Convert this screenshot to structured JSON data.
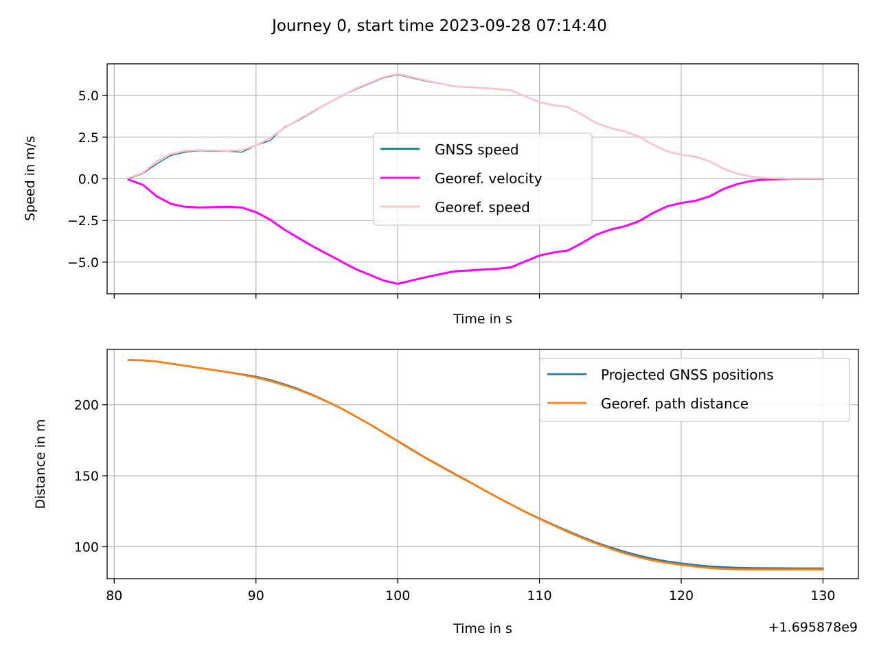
{
  "figure": {
    "title": "Journey 0, start time 2023-09-28 07:14:40",
    "x_offset_label": "+1.695878e9"
  },
  "chart_data": [
    {
      "type": "line",
      "ylabel": "Speed in m/s",
      "xlabel": "Time in s",
      "xlim": [
        79.5,
        132.5
      ],
      "ylim": [
        -6.9,
        6.9
      ],
      "x_ticks": [
        80,
        90,
        100,
        110,
        120,
        130
      ],
      "x_tick_labels_shown": false,
      "y_ticks": [
        -5.0,
        -2.5,
        0.0,
        2.5,
        5.0
      ],
      "y_tick_labels": [
        "−5.0",
        "−2.5",
        "0.0",
        "2.5",
        "5.0"
      ],
      "grid": true,
      "legend": "center",
      "series": [
        {
          "name": "GNSS speed",
          "color": "#008080",
          "x": [
            81,
            82,
            83,
            84,
            85,
            86,
            87,
            88,
            89,
            90,
            91,
            92,
            93,
            94,
            95,
            96,
            97,
            98,
            99,
            100,
            101,
            102,
            103,
            104,
            105,
            106,
            107,
            108,
            109,
            110,
            111,
            112,
            113,
            114,
            115,
            116,
            117,
            118,
            119,
            120,
            121,
            122,
            123,
            124,
            125,
            126,
            127,
            128,
            129,
            130
          ],
          "values": [
            0.0,
            0.3,
            0.9,
            1.4,
            1.6,
            1.68,
            1.65,
            1.65,
            1.6,
            2.0,
            2.3,
            3.1,
            3.5,
            4.0,
            4.5,
            4.95,
            5.35,
            5.7,
            6.05,
            6.25,
            6.05,
            5.85,
            5.7,
            5.55,
            5.5,
            5.45,
            5.4,
            5.3,
            4.95,
            4.6,
            4.4,
            4.3,
            3.85,
            3.35,
            3.05,
            2.85,
            2.55,
            2.05,
            1.65,
            1.45,
            1.35,
            1.05,
            0.6,
            0.3,
            0.12,
            0.04,
            0.05,
            0.0,
            0.0,
            0.0
          ]
        },
        {
          "name": "Georef. velocity",
          "color": "#ff00ff",
          "x": [
            81,
            82,
            83,
            84,
            85,
            86,
            87,
            88,
            89,
            90,
            91,
            92,
            93,
            94,
            95,
            96,
            97,
            98,
            99,
            100,
            101,
            102,
            103,
            104,
            105,
            106,
            107,
            108,
            109,
            110,
            111,
            112,
            113,
            114,
            115,
            116,
            117,
            118,
            119,
            120,
            121,
            122,
            123,
            124,
            125,
            126,
            127,
            128,
            129,
            130
          ],
          "values": [
            -0.05,
            -0.35,
            -1.05,
            -1.5,
            -1.68,
            -1.72,
            -1.7,
            -1.68,
            -1.72,
            -2.0,
            -2.45,
            -3.05,
            -3.55,
            -4.05,
            -4.5,
            -4.95,
            -5.4,
            -5.75,
            -6.1,
            -6.3,
            -6.1,
            -5.9,
            -5.72,
            -5.55,
            -5.5,
            -5.45,
            -5.4,
            -5.3,
            -4.95,
            -4.6,
            -4.42,
            -4.3,
            -3.85,
            -3.35,
            -3.05,
            -2.85,
            -2.55,
            -2.05,
            -1.65,
            -1.45,
            -1.32,
            -1.05,
            -0.6,
            -0.3,
            -0.12,
            -0.04,
            -0.02,
            0.0,
            0.0,
            0.0
          ]
        },
        {
          "name": "Georef. speed",
          "color": "#ffc0cb",
          "x": [
            81,
            82,
            83,
            84,
            85,
            86,
            87,
            88,
            89,
            90,
            91,
            92,
            93,
            94,
            95,
            96,
            97,
            98,
            99,
            100,
            101,
            102,
            103,
            104,
            105,
            106,
            107,
            108,
            109,
            110,
            111,
            112,
            113,
            114,
            115,
            116,
            117,
            118,
            119,
            120,
            121,
            122,
            123,
            124,
            125,
            126,
            127,
            128,
            129,
            130
          ],
          "values": [
            0.05,
            0.35,
            1.05,
            1.5,
            1.68,
            1.72,
            1.7,
            1.68,
            1.72,
            2.0,
            2.45,
            3.05,
            3.55,
            4.05,
            4.5,
            4.95,
            5.4,
            5.75,
            6.1,
            6.3,
            6.1,
            5.9,
            5.72,
            5.55,
            5.5,
            5.45,
            5.4,
            5.3,
            4.95,
            4.6,
            4.42,
            4.3,
            3.85,
            3.35,
            3.05,
            2.85,
            2.55,
            2.05,
            1.65,
            1.45,
            1.32,
            1.05,
            0.6,
            0.3,
            0.12,
            0.04,
            0.02,
            0.0,
            0.0,
            0.0
          ]
        }
      ]
    },
    {
      "type": "line",
      "ylabel": "Distance in m",
      "xlabel": "Time in s",
      "xlim": [
        79.5,
        132.5
      ],
      "ylim": [
        77.5,
        239
      ],
      "x_ticks": [
        80,
        90,
        100,
        110,
        120,
        130
      ],
      "x_tick_labels": [
        "80",
        "90",
        "100",
        "110",
        "120",
        "130"
      ],
      "y_ticks": [
        100,
        150,
        200
      ],
      "y_tick_labels": [
        "100",
        "150",
        "200"
      ],
      "grid": true,
      "legend": "upper right",
      "series": [
        {
          "name": "Projected GNSS positions",
          "color": "#1f77b4",
          "x": [
            81,
            82,
            83,
            84,
            85,
            86,
            87,
            88,
            89,
            90,
            91,
            92,
            93,
            94,
            95,
            96,
            97,
            98,
            99,
            100,
            101,
            102,
            103,
            104,
            105,
            106,
            107,
            108,
            109,
            110,
            111,
            112,
            113,
            114,
            115,
            116,
            117,
            118,
            119,
            120,
            121,
            122,
            123,
            124,
            125,
            126,
            127,
            128,
            129,
            130
          ],
          "values": [
            231.5,
            231.3,
            230.5,
            229.0,
            227.5,
            226.0,
            224.5,
            223.0,
            221.5,
            219.8,
            217.5,
            214.5,
            211.0,
            207.0,
            202.5,
            197.5,
            192.0,
            186.5,
            180.5,
            174.5,
            168.5,
            162.5,
            157.0,
            151.5,
            146.0,
            140.5,
            135.0,
            129.7,
            124.7,
            119.9,
            115.4,
            111.0,
            106.9,
            103.0,
            99.6,
            96.5,
            93.8,
            91.5,
            89.7,
            88.3,
            87.1,
            86.2,
            85.6,
            85.2,
            85.0,
            84.9,
            84.9,
            84.8,
            84.8,
            84.8
          ]
        },
        {
          "name": "Georef. path distance",
          "color": "#ff7f0e",
          "x": [
            81,
            82,
            83,
            84,
            85,
            86,
            87,
            88,
            89,
            90,
            91,
            92,
            93,
            94,
            95,
            96,
            97,
            98,
            99,
            100,
            101,
            102,
            103,
            104,
            105,
            106,
            107,
            108,
            109,
            110,
            111,
            112,
            113,
            114,
            115,
            116,
            117,
            118,
            119,
            120,
            121,
            122,
            123,
            124,
            125,
            126,
            127,
            128,
            129,
            130
          ],
          "values": [
            231.5,
            231.3,
            230.5,
            229.0,
            227.5,
            226.0,
            224.5,
            223.0,
            221.2,
            219.2,
            216.8,
            213.8,
            210.5,
            206.7,
            202.3,
            197.5,
            192.0,
            186.4,
            180.4,
            174.3,
            168.2,
            162.3,
            156.7,
            151.2,
            145.8,
            140.4,
            135.0,
            129.7,
            124.5,
            119.6,
            115.0,
            110.5,
            106.2,
            102.3,
            98.7,
            95.4,
            92.6,
            90.3,
            88.6,
            87.2,
            86.0,
            85.0,
            84.4,
            84.1,
            84.0,
            84.0,
            84.0,
            84.0,
            84.0,
            84.0
          ]
        }
      ]
    }
  ]
}
